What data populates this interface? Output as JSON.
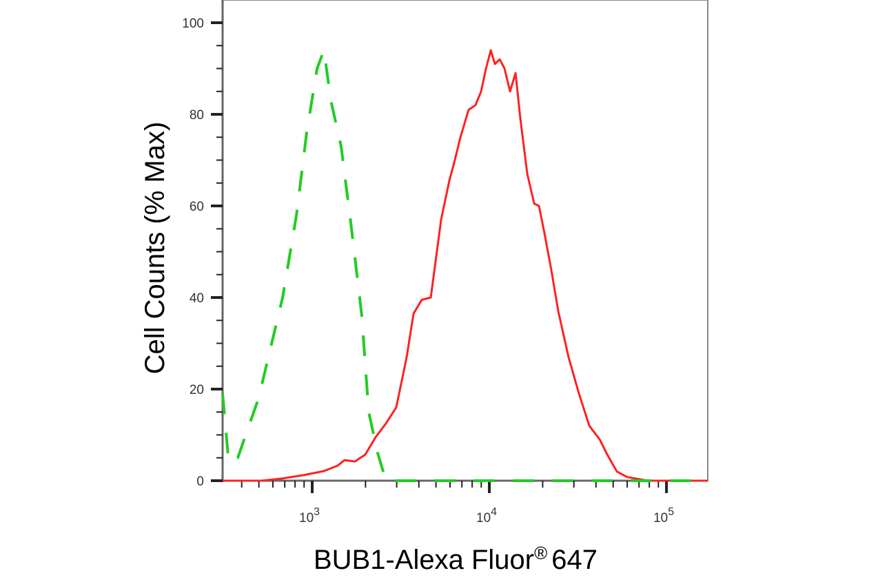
{
  "chart_data": {
    "type": "line",
    "title": "",
    "xlabel": "BUB1-Alexa Fluor",
    "xlabel_superscript": "®",
    "xlabel_suffix": "647",
    "ylabel": "Cell Counts (% Max)",
    "xscale": "log",
    "xlim": [
      312,
      171000
    ],
    "ylim": [
      0,
      105
    ],
    "x_ticks": [
      {
        "value": 1000,
        "base": "10",
        "exp": "3"
      },
      {
        "value": 10000,
        "base": "10",
        "exp": "4"
      },
      {
        "value": 100000,
        "base": "10",
        "exp": "5"
      }
    ],
    "y_ticks": [
      0,
      20,
      40,
      60,
      80,
      100
    ],
    "grid": false,
    "legend": "none",
    "series": [
      {
        "color": "#ff2020",
        "style": "solid",
        "x": [
          312,
          520,
          681,
          890,
          1165,
          1393,
          1523,
          1743,
          1993,
          2279,
          2608,
          2983,
          3414,
          3733,
          4157,
          4670,
          5341,
          5946,
          6385,
          6865,
          7642,
          8358,
          8980,
          9570,
          10190,
          10750,
          11440,
          12180,
          13090,
          14060,
          14970,
          16370,
          17900,
          19060,
          20480,
          22390,
          24490,
          28000,
          32050,
          36650,
          41960,
          45850,
          52470,
          59990,
          78520,
          171000
        ],
        "y": [
          0,
          0,
          0.5,
          1.2,
          2.1,
          3.3,
          4.5,
          4.2,
          5.7,
          9.5,
          12.5,
          16,
          27,
          36.5,
          39.5,
          40,
          57,
          65.5,
          70,
          75,
          81,
          82,
          85,
          90,
          94,
          91,
          92,
          90,
          85,
          89,
          79,
          67,
          60.5,
          60,
          54,
          46,
          37,
          27,
          19,
          12,
          9,
          6,
          2,
          0.8,
          0,
          0
        ]
      },
      {
        "color": "#22cc22",
        "style": "dashed",
        "x": [
          312,
          338,
          380,
          498,
          681,
          815,
          931,
          1065,
          1165,
          1274,
          1457,
          1667,
          1905,
          2084,
          2344,
          2608,
          171000
        ],
        "y": [
          19,
          4,
          5,
          18,
          40,
          58,
          76,
          90,
          94,
          83,
          73,
          55,
          36,
          15,
          6,
          0,
          0
        ]
      }
    ]
  }
}
